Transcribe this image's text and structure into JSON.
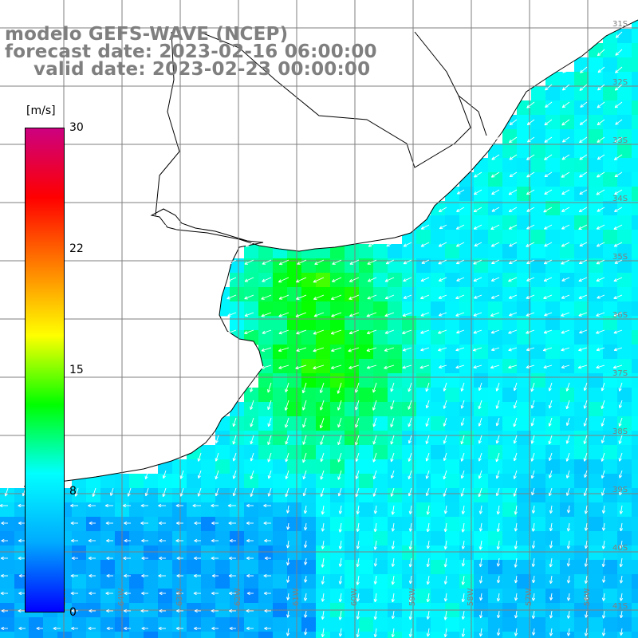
{
  "header": {
    "line1": "modelo GEFS-WAVE (NCEP)",
    "line2": "forecast date: 2023-02-16 06:00:00",
    "line3": "valid date: 2023-02-23 00:00:00"
  },
  "colorbar": {
    "unit": "[m/s]",
    "ticks": [
      "30",
      "22",
      "15",
      "8",
      "0"
    ],
    "colors": [
      "#0000ff",
      "#00aaff",
      "#00ffff",
      "#00ff00",
      "#ffff00",
      "#ff8000",
      "#ff0000",
      "#cc0080"
    ],
    "min": 0,
    "max": 30
  },
  "map_colors": {
    "land": "#ffffff",
    "coast": "#000000",
    "grid": "#7f7f7f",
    "arrows": "#ffffff"
  },
  "lat_labels": [
    "31S",
    "32S",
    "33S",
    "34S",
    "35S",
    "36S",
    "37S",
    "38S",
    "39S",
    "40S",
    "41S"
  ],
  "lon_labels": [
    "65W",
    "64W",
    "63W",
    "62W",
    "61W",
    "60W",
    "59W",
    "58W",
    "57W",
    "56W",
    "55W"
  ]
}
